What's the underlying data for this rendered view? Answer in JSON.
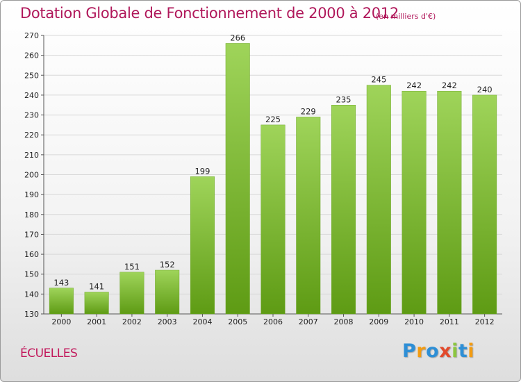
{
  "header": {
    "title": "Dotation Globale de Fonctionnement de 2000 à 2012",
    "subtitle": "(en milliers d'€)"
  },
  "footer": {
    "commune": "ÉCUELLES",
    "logo": {
      "letters": [
        "P",
        "r",
        "o",
        "x",
        "i",
        "t",
        "i"
      ],
      "colors": [
        "#2e8fd6",
        "#f39c12",
        "#2e8fd6",
        "#e24a2c",
        "#8cc63f",
        "#2e8fd6",
        "#f39c12"
      ]
    }
  },
  "chart_data": {
    "type": "bar",
    "categories": [
      "2000",
      "2001",
      "2002",
      "2003",
      "2004",
      "2005",
      "2006",
      "2007",
      "2008",
      "2009",
      "2010",
      "2011",
      "2012"
    ],
    "values": [
      143,
      141,
      151,
      152,
      199,
      266,
      225,
      229,
      235,
      245,
      242,
      242,
      240
    ],
    "title": "Dotation Globale de Fonctionnement de 2000 à 2012",
    "subtitle": "(en milliers d'€)",
    "xlabel": "",
    "ylabel": "",
    "ylim": [
      130,
      270
    ],
    "yticks": [
      130,
      140,
      150,
      160,
      170,
      180,
      190,
      200,
      210,
      220,
      230,
      240,
      250,
      260,
      270
    ],
    "grid": true,
    "colors": {
      "bar_top": "#9fd45a",
      "bar_bottom": "#5e9b14",
      "grid": "#d8d8d8",
      "title": "#b0175a"
    }
  }
}
